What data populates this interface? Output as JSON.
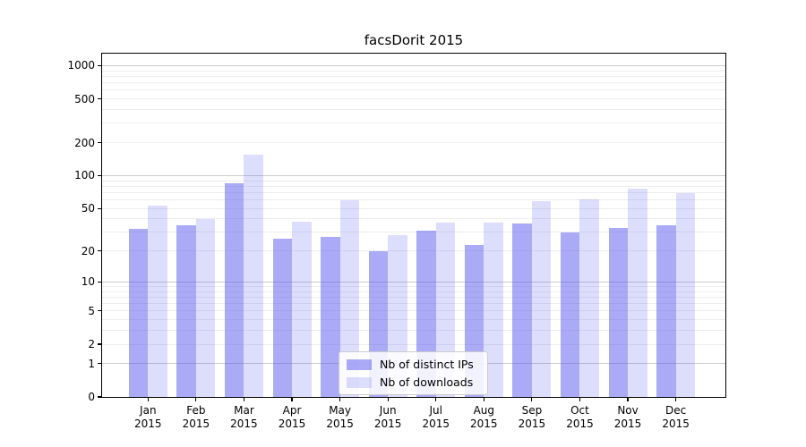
{
  "chart_data": {
    "type": "bar",
    "title": "facsDorit 2015",
    "categories": [
      "Jan",
      "Feb",
      "Mar",
      "Apr",
      "May",
      "Jun",
      "Jul",
      "Aug",
      "Sep",
      "Oct",
      "Nov",
      "Dec"
    ],
    "category_year_line": "2015",
    "series": [
      {
        "name": "Nb of distinct IPs",
        "color": "rgba(85,85,238,0.5)",
        "values": [
          32,
          35,
          85,
          26,
          27,
          20,
          31,
          23,
          36,
          30,
          33,
          35
        ]
      },
      {
        "name": "Nb of downloads",
        "color": "rgba(85,85,238,0.2)",
        "values": [
          53,
          40,
          155,
          38,
          59,
          28,
          37,
          37,
          58,
          61,
          76,
          69
        ]
      }
    ],
    "xlabel": "",
    "ylabel": "",
    "yscale": "log10(1+x)",
    "yticks": [
      0,
      1,
      2,
      5,
      10,
      20,
      50,
      100,
      200,
      500,
      1000
    ],
    "ylim": [
      0,
      1300
    ],
    "grid": "major and minor horizontal gridlines",
    "legend_position": "lower center",
    "colors": {
      "bar_base": "#5555ee",
      "major_grid": "#cccccc",
      "minor_grid": "#ededed",
      "spine": "#000000",
      "background": "#ffffff",
      "text": "#000000"
    }
  }
}
